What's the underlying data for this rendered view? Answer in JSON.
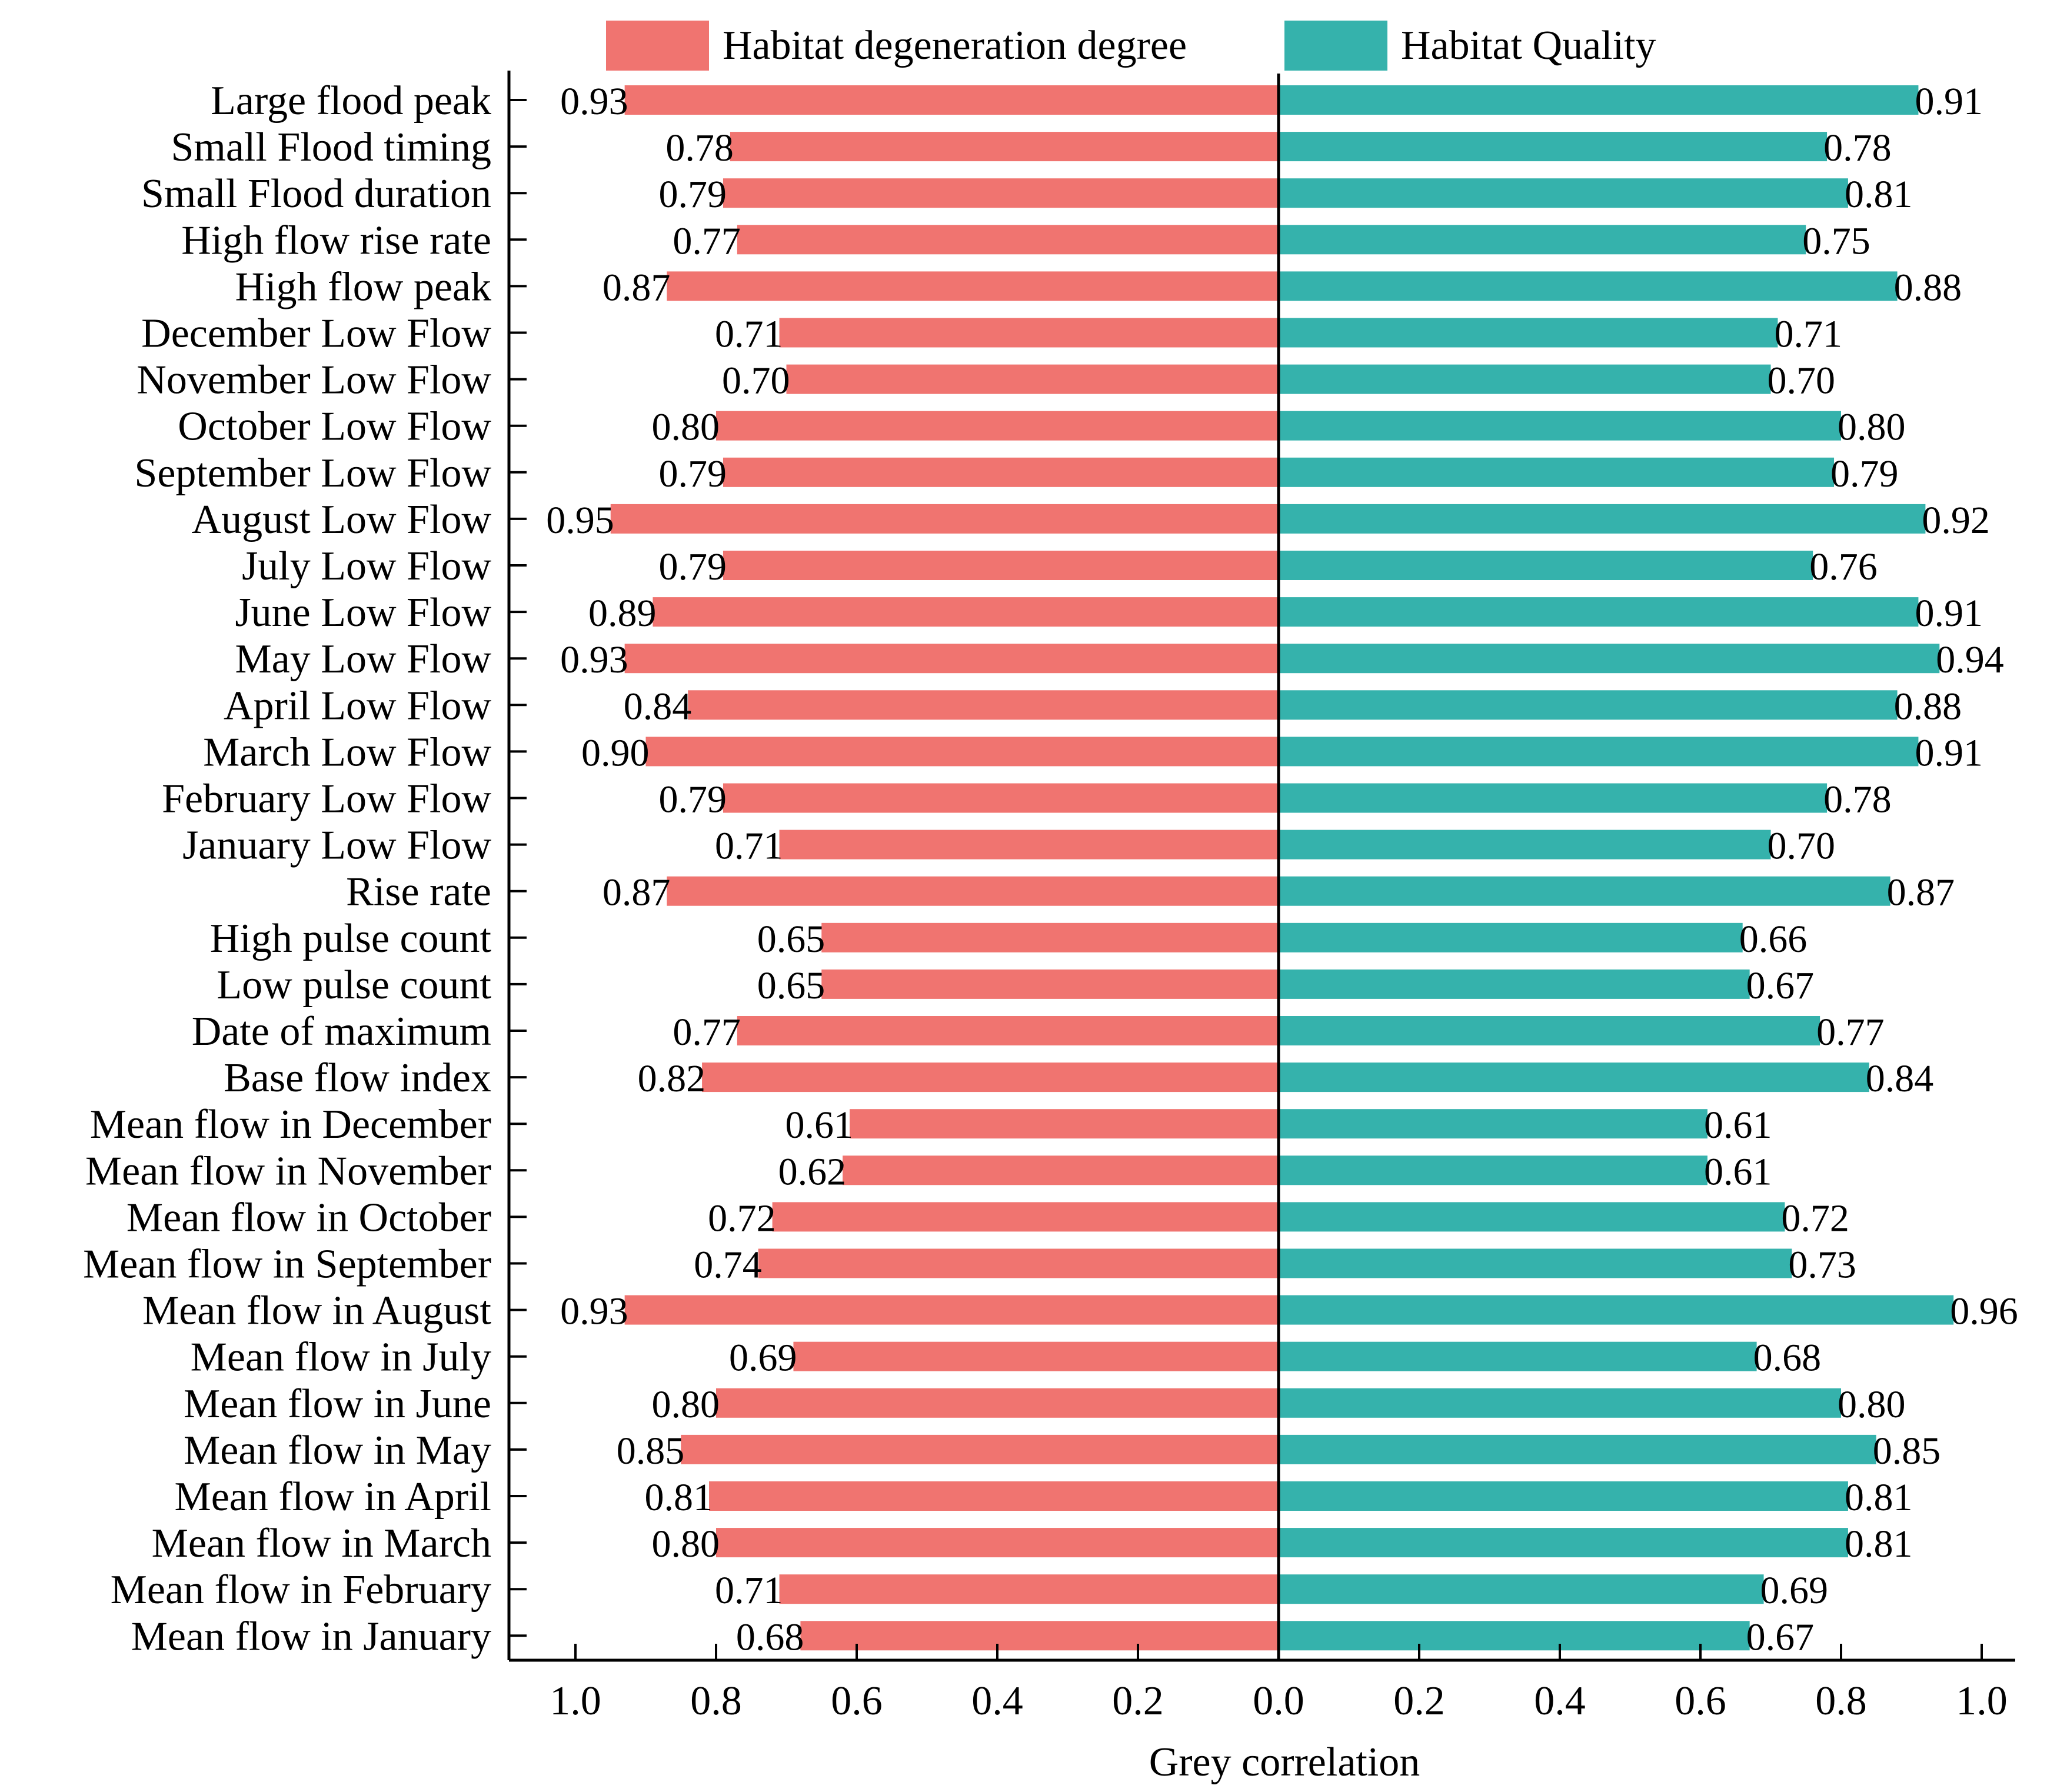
{
  "chart_data": {
    "type": "bar",
    "orientation": "horizontal-diverging",
    "xlabel": "Grey correlation",
    "xlim": [
      -1.0,
      1.0
    ],
    "tick_values": [
      -1.0,
      -0.8,
      -0.6,
      -0.4,
      -0.2,
      0.0,
      0.2,
      0.4,
      0.6,
      0.8,
      1.0
    ],
    "tick_labels": [
      "1.0",
      "0.8",
      "0.6",
      "0.4",
      "0.2",
      "0.0",
      "0.2",
      "0.4",
      "0.6",
      "0.8",
      "1.0"
    ],
    "grid": false,
    "legend_position": "top",
    "categories": [
      "Large flood peak",
      "Small Flood timing",
      "Small Flood duration",
      "High flow rise rate",
      "High flow peak",
      "December Low Flow",
      "November Low Flow",
      "October Low Flow",
      "September Low Flow",
      "August Low Flow",
      "July Low Flow",
      "June Low Flow",
      "May Low Flow",
      "April Low Flow",
      "March Low Flow",
      "February Low Flow",
      "January Low Flow",
      "Rise rate",
      "High pulse count",
      "Low pulse count",
      "Date of maximum",
      "Base flow index",
      "Mean flow in December",
      "Mean flow in November",
      "Mean flow in October",
      "Mean flow in September",
      "Mean flow in August",
      "Mean flow in July",
      "Mean flow in June",
      "Mean flow in May",
      "Mean flow in April",
      "Mean flow in March",
      "Mean flow in February",
      "Mean flow in January"
    ],
    "series": [
      {
        "name": "Habitat degeneration degree",
        "color": "#F07470",
        "side": "left",
        "values": [
          0.93,
          0.78,
          0.79,
          0.77,
          0.87,
          0.71,
          0.7,
          0.8,
          0.79,
          0.95,
          0.79,
          0.89,
          0.93,
          0.84,
          0.9,
          0.79,
          0.71,
          0.87,
          0.65,
          0.65,
          0.77,
          0.82,
          0.61,
          0.62,
          0.72,
          0.74,
          0.93,
          0.69,
          0.8,
          0.85,
          0.81,
          0.8,
          0.71,
          0.68
        ],
        "labels": [
          "0.93",
          "0.78",
          "0.79",
          "0.77",
          "0.87",
          "0.71",
          "0.70",
          "0.80",
          "0.79",
          "0.95",
          "0.79",
          "0.89",
          "0.93",
          "0.84",
          "0.90",
          "0.79",
          "0.71",
          "0.87",
          "0.65",
          "0.65",
          "0.77",
          "0.82",
          "0.61",
          "0.62",
          "0.72",
          "0.74",
          "0.93",
          "0.69",
          "0.80",
          "0.85",
          "0.81",
          "0.80",
          "0.71",
          "0.68"
        ]
      },
      {
        "name": "Habitat Quality",
        "color": "#35B2AC",
        "side": "right",
        "values": [
          0.91,
          0.78,
          0.81,
          0.75,
          0.88,
          0.71,
          0.7,
          0.8,
          0.79,
          0.92,
          0.76,
          0.91,
          0.94,
          0.88,
          0.91,
          0.78,
          0.7,
          0.87,
          0.66,
          0.67,
          0.77,
          0.84,
          0.61,
          0.61,
          0.72,
          0.73,
          0.96,
          0.68,
          0.8,
          0.85,
          0.81,
          0.81,
          0.69,
          0.67
        ],
        "labels": [
          "0.91",
          "0.78",
          "0.81",
          "0.75",
          "0.88",
          "0.71",
          "0.70",
          "0.80",
          "0.79",
          "0.92",
          "0.76",
          "0.91",
          "0.94",
          "0.88",
          "0.91",
          "0.78",
          "0.70",
          "0.87",
          "0.66",
          "0.67",
          "0.77",
          "0.84",
          "0.61",
          "0.61",
          "0.72",
          "0.73",
          "0.96",
          "0.68",
          "0.80",
          "0.85",
          "0.81",
          "0.81",
          "0.69",
          "0.67"
        ]
      }
    ]
  }
}
